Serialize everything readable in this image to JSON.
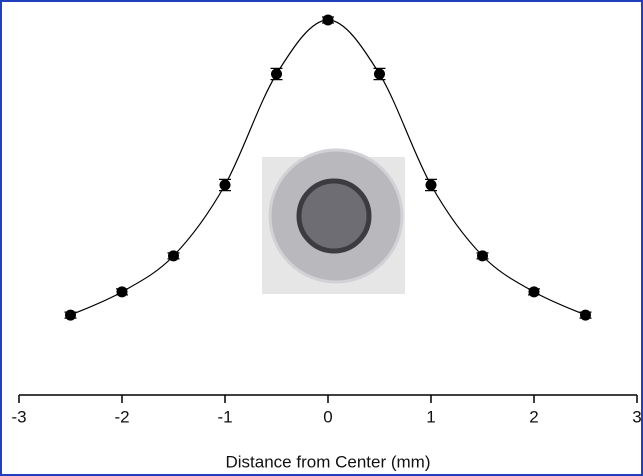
{
  "chart_data": {
    "type": "scatter",
    "x_label": "Distance from Center (mm)",
    "xlim": [
      -3,
      3
    ],
    "xticks": [
      -3,
      -2,
      -1,
      0,
      1,
      2,
      3
    ],
    "ylim": [
      0,
      100
    ],
    "series": [
      {
        "color": "#000000",
        "x": [
          -2.5,
          -2,
          -1.5,
          -1,
          -0.5,
          0,
          0.5,
          1,
          1.5,
          2,
          2.5
        ],
        "values": [
          21.3,
          27.5,
          37.1,
          56,
          85.6,
          100,
          85.6,
          56,
          37.1,
          27.5,
          21.3
        ],
        "errors": [
          0.8,
          0.8,
          0.8,
          1.5,
          1.5,
          0.8,
          1.5,
          1.5,
          0.8,
          0.8,
          0.8
        ]
      }
    ]
  }
}
